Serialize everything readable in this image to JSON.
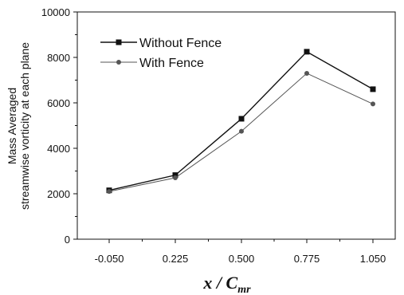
{
  "chart_data": {
    "type": "line",
    "categories": [
      "-0.050",
      "0.225",
      "0.500",
      "0.775",
      "1.050"
    ],
    "series": [
      {
        "name": "Without Fence",
        "values": [
          2150,
          2820,
          5300,
          8250,
          6600
        ],
        "marker": "square",
        "color": "#111111"
      },
      {
        "name": "With Fence",
        "values": [
          2100,
          2700,
          4750,
          7300,
          5950
        ],
        "marker": "circle",
        "color": "#555555"
      }
    ],
    "ylim": [
      0,
      10000
    ],
    "yticks": [
      "0",
      "2000",
      "4000",
      "6000",
      "8000",
      "10000"
    ],
    "ylabel_lines": [
      "Mass Averaged",
      "streamwise vorticity at each plane"
    ],
    "xlabel": {
      "main": "x / C",
      "sub": "mr"
    },
    "grid": false,
    "legend_position": "top-left"
  }
}
